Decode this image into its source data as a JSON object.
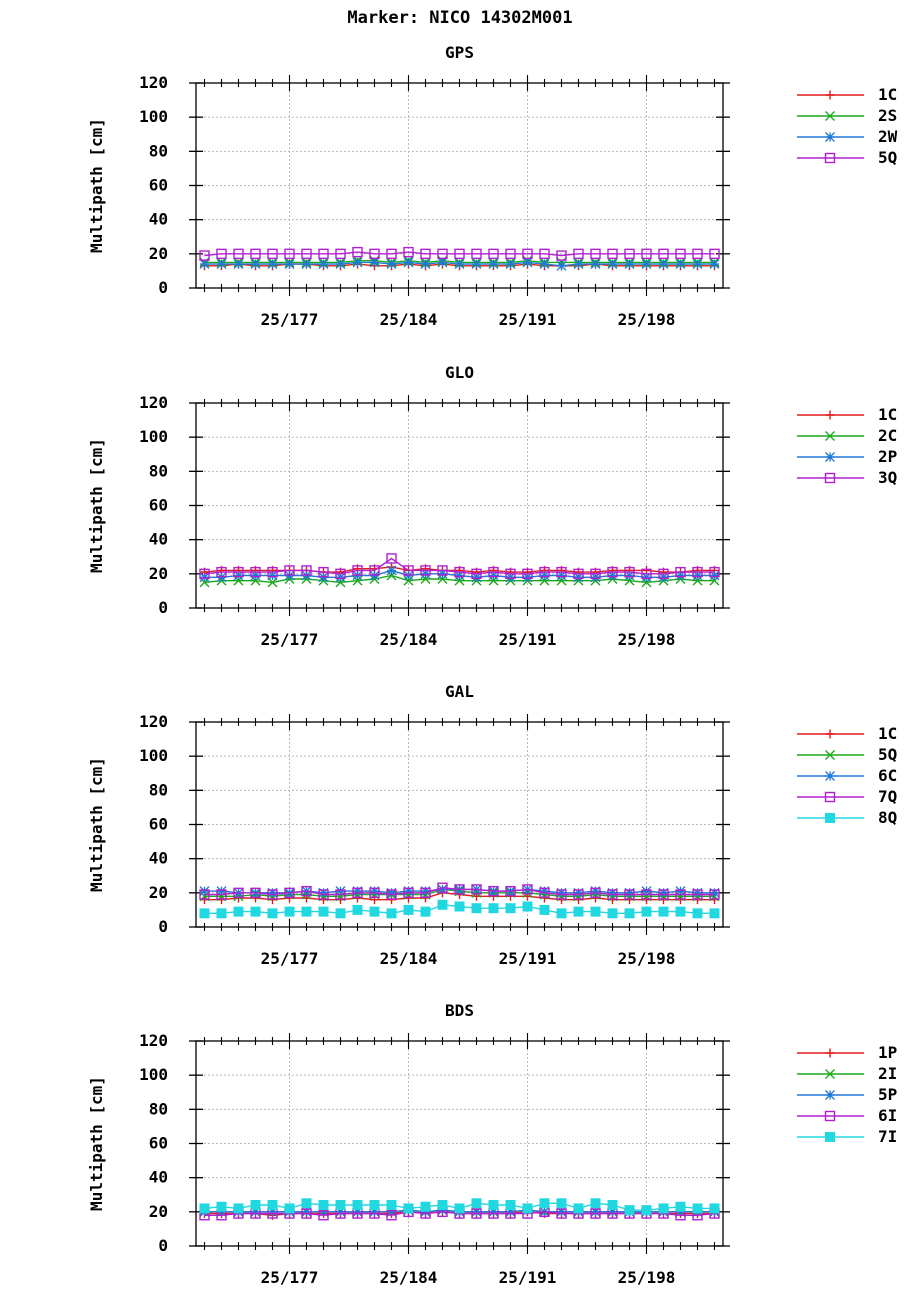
{
  "marker_title": "Marker: NICO 14302M001",
  "chart_data": [
    {
      "type": "line",
      "title": "GPS",
      "ylabel": "Multipath [cm]",
      "xlabel": "",
      "ylim": [
        0,
        120
      ],
      "yticks": [
        0,
        20,
        40,
        60,
        80,
        100,
        120
      ],
      "xlim": [
        171.5,
        202.5
      ],
      "xticks": [
        177,
        184,
        191,
        198
      ],
      "xtick_labels": [
        "25/177",
        "25/184",
        "25/191",
        "25/198"
      ],
      "grid": true,
      "legend_position": "right-outside",
      "x": [
        172,
        173,
        174,
        175,
        176,
        177,
        178,
        179,
        180,
        181,
        182,
        183,
        184,
        185,
        186,
        187,
        188,
        189,
        190,
        191,
        192,
        193,
        194,
        195,
        196,
        197,
        198,
        199,
        200,
        201,
        202
      ],
      "series": [
        {
          "name": "1C",
          "color": "#e31a1c",
          "marker": "plus",
          "values": [
            13,
            13,
            14,
            13,
            13,
            14,
            14,
            13,
            13,
            14,
            13,
            13,
            14,
            13,
            14,
            13,
            13,
            13,
            13,
            14,
            13,
            13,
            13,
            14,
            13,
            13,
            13,
            13,
            13,
            13,
            13
          ]
        },
        {
          "name": "2S",
          "color": "#1aaa1a",
          "marker": "cross",
          "values": [
            15,
            15,
            15,
            15,
            15,
            15,
            15,
            15,
            15,
            16,
            16,
            15,
            16,
            15,
            16,
            15,
            15,
            15,
            15,
            16,
            15,
            15,
            15,
            15,
            15,
            15,
            15,
            15,
            15,
            15,
            15
          ]
        },
        {
          "name": "2W",
          "color": "#1f78d8",
          "marker": "star",
          "values": [
            14,
            14,
            14,
            14,
            14,
            14,
            14,
            14,
            14,
            15,
            15,
            14,
            15,
            14,
            15,
            14,
            14,
            14,
            14,
            15,
            14,
            13,
            14,
            14,
            14,
            14,
            14,
            14,
            14,
            14,
            14
          ]
        },
        {
          "name": "5Q",
          "color": "#b020d0",
          "marker": "square",
          "values": [
            19,
            20,
            20,
            20,
            20,
            20,
            20,
            20,
            20,
            21,
            20,
            20,
            21,
            20,
            20,
            20,
            20,
            20,
            20,
            20,
            20,
            19,
            20,
            20,
            20,
            20,
            20,
            20,
            20,
            20,
            20
          ]
        }
      ]
    },
    {
      "type": "line",
      "title": "GLO",
      "ylabel": "Multipath [cm]",
      "xlabel": "",
      "ylim": [
        0,
        120
      ],
      "yticks": [
        0,
        20,
        40,
        60,
        80,
        100,
        120
      ],
      "xlim": [
        171.5,
        202.5
      ],
      "xticks": [
        177,
        184,
        191,
        198
      ],
      "xtick_labels": [
        "25/177",
        "25/184",
        "25/191",
        "25/198"
      ],
      "grid": true,
      "legend_position": "right-outside",
      "x": [
        172,
        173,
        174,
        175,
        176,
        177,
        178,
        179,
        180,
        181,
        182,
        183,
        184,
        185,
        186,
        187,
        188,
        189,
        190,
        191,
        192,
        193,
        194,
        195,
        196,
        197,
        198,
        199,
        200,
        201,
        202
      ],
      "series": [
        {
          "name": "1C",
          "color": "#e31a1c",
          "marker": "plus",
          "values": [
            21,
            22,
            22,
            22,
            22,
            22,
            22,
            21,
            21,
            23,
            23,
            24,
            22,
            23,
            22,
            22,
            21,
            22,
            21,
            21,
            22,
            22,
            21,
            21,
            22,
            22,
            22,
            21,
            21,
            22,
            22
          ]
        },
        {
          "name": "2C",
          "color": "#1aaa1a",
          "marker": "cross",
          "values": [
            15,
            16,
            16,
            16,
            15,
            17,
            17,
            16,
            15,
            16,
            17,
            19,
            16,
            17,
            17,
            16,
            16,
            16,
            16,
            16,
            16,
            16,
            16,
            16,
            17,
            16,
            15,
            16,
            17,
            16,
            16
          ]
        },
        {
          "name": "2P",
          "color": "#1f78d8",
          "marker": "star",
          "values": [
            18,
            18,
            19,
            19,
            19,
            19,
            19,
            18,
            18,
            19,
            19,
            22,
            19,
            20,
            20,
            19,
            18,
            19,
            18,
            18,
            19,
            19,
            18,
            18,
            19,
            19,
            18,
            18,
            19,
            19,
            19
          ]
        },
        {
          "name": "3Q",
          "color": "#b020d0",
          "marker": "square",
          "values": [
            20,
            21,
            21,
            21,
            21,
            22,
            22,
            21,
            20,
            22,
            22,
            29,
            22,
            22,
            22,
            21,
            20,
            21,
            20,
            20,
            21,
            21,
            20,
            20,
            21,
            21,
            20,
            20,
            21,
            21,
            21
          ]
        }
      ]
    },
    {
      "type": "line",
      "title": "GAL",
      "ylabel": "Multipath [cm]",
      "xlabel": "",
      "ylim": [
        0,
        120
      ],
      "yticks": [
        0,
        20,
        40,
        60,
        80,
        100,
        120
      ],
      "xlim": [
        171.5,
        202.5
      ],
      "xticks": [
        177,
        184,
        191,
        198
      ],
      "xtick_labels": [
        "25/177",
        "25/184",
        "25/191",
        "25/198"
      ],
      "grid": true,
      "legend_position": "right-outside",
      "x": [
        172,
        173,
        174,
        175,
        176,
        177,
        178,
        179,
        180,
        181,
        182,
        183,
        184,
        185,
        186,
        187,
        188,
        189,
        190,
        191,
        192,
        193,
        194,
        195,
        196,
        197,
        198,
        199,
        200,
        201,
        202
      ],
      "series": [
        {
          "name": "1C",
          "color": "#e31a1c",
          "marker": "plus",
          "values": [
            16,
            16,
            17,
            17,
            16,
            17,
            17,
            16,
            16,
            17,
            16,
            16,
            17,
            17,
            20,
            19,
            18,
            18,
            18,
            18,
            17,
            16,
            16,
            17,
            16,
            16,
            16,
            16,
            16,
            16,
            16
          ]
        },
        {
          "name": "5Q",
          "color": "#1aaa1a",
          "marker": "cross",
          "values": [
            18,
            18,
            18,
            19,
            18,
            19,
            19,
            18,
            18,
            19,
            19,
            19,
            19,
            19,
            22,
            21,
            20,
            20,
            20,
            20,
            19,
            18,
            18,
            19,
            18,
            18,
            18,
            18,
            18,
            18,
            18
          ]
        },
        {
          "name": "6C",
          "color": "#1f78d8",
          "marker": "star",
          "values": [
            21,
            21,
            20,
            20,
            20,
            20,
            21,
            20,
            21,
            21,
            21,
            20,
            21,
            21,
            22,
            22,
            22,
            21,
            21,
            22,
            21,
            20,
            20,
            21,
            20,
            20,
            21,
            20,
            21,
            20,
            20
          ]
        },
        {
          "name": "7Q",
          "color": "#b020d0",
          "marker": "square",
          "values": [
            19,
            19,
            20,
            20,
            19,
            20,
            21,
            19,
            19,
            20,
            20,
            19,
            20,
            20,
            23,
            22,
            22,
            21,
            21,
            22,
            20,
            19,
            19,
            20,
            19,
            19,
            19,
            19,
            19,
            19,
            19
          ]
        },
        {
          "name": "8Q",
          "color": "#22d8e0",
          "marker": "filled-square",
          "values": [
            8,
            8,
            9,
            9,
            8,
            9,
            9,
            9,
            8,
            10,
            9,
            8,
            10,
            9,
            13,
            12,
            11,
            11,
            11,
            12,
            10,
            8,
            9,
            9,
            8,
            8,
            9,
            9,
            9,
            8,
            8
          ]
        }
      ]
    },
    {
      "type": "line",
      "title": "BDS",
      "ylabel": "Multipath [cm]",
      "xlabel": "",
      "ylim": [
        0,
        120
      ],
      "yticks": [
        0,
        20,
        40,
        60,
        80,
        100,
        120
      ],
      "xlim": [
        171.5,
        202.5
      ],
      "xticks": [
        177,
        184,
        191,
        198
      ],
      "xtick_labels": [
        "25/177",
        "25/184",
        "25/191",
        "25/198"
      ],
      "grid": true,
      "legend_position": "right-outside",
      "x": [
        172,
        173,
        174,
        175,
        176,
        177,
        178,
        179,
        180,
        181,
        182,
        183,
        184,
        185,
        186,
        187,
        188,
        189,
        190,
        191,
        192,
        193,
        194,
        195,
        196,
        197,
        198,
        199,
        200,
        201,
        202
      ],
      "series": [
        {
          "name": "1P",
          "color": "#e31a1c",
          "marker": "plus",
          "values": [
            19,
            19,
            19,
            19,
            18,
            19,
            19,
            19,
            19,
            19,
            19,
            19,
            20,
            19,
            20,
            19,
            19,
            19,
            19,
            20,
            19,
            19,
            19,
            19,
            19,
            19,
            19,
            19,
            19,
            19,
            19
          ]
        },
        {
          "name": "2I",
          "color": "#1aaa1a",
          "marker": "cross",
          "values": [
            20,
            20,
            20,
            20,
            20,
            20,
            20,
            20,
            20,
            20,
            20,
            20,
            21,
            20,
            21,
            20,
            20,
            20,
            20,
            21,
            20,
            20,
            20,
            20,
            20,
            20,
            20,
            20,
            20,
            20,
            20
          ]
        },
        {
          "name": "5P",
          "color": "#1f78d8",
          "marker": "star",
          "values": [
            20,
            20,
            20,
            20,
            20,
            20,
            20,
            20,
            20,
            20,
            20,
            20,
            21,
            20,
            21,
            20,
            20,
            20,
            20,
            21,
            20,
            20,
            20,
            20,
            20,
            20,
            20,
            20,
            20,
            20,
            20
          ]
        },
        {
          "name": "6I",
          "color": "#b020d0",
          "marker": "square",
          "values": [
            18,
            18,
            19,
            19,
            19,
            19,
            19,
            18,
            19,
            19,
            19,
            18,
            20,
            19,
            20,
            19,
            19,
            19,
            19,
            19,
            20,
            19,
            19,
            19,
            19,
            19,
            19,
            19,
            18,
            18,
            19
          ]
        },
        {
          "name": "7I",
          "color": "#22d8e0",
          "marker": "filled-square",
          "values": [
            22,
            23,
            22,
            24,
            24,
            22,
            25,
            24,
            24,
            24,
            24,
            24,
            22,
            23,
            24,
            22,
            25,
            24,
            24,
            22,
            25,
            25,
            22,
            25,
            24,
            21,
            21,
            22,
            23,
            22,
            22
          ]
        }
      ]
    }
  ]
}
